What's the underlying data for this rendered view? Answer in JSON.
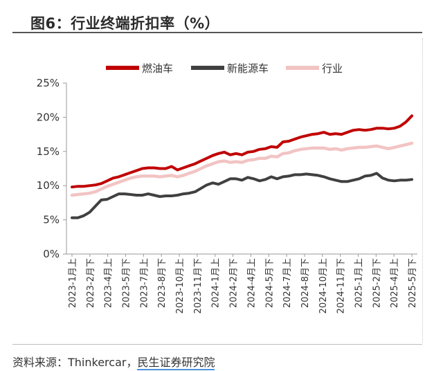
{
  "title": "图6：行业终端折扣率（%）",
  "source": {
    "prefix": "资料来源：Thinkercar，",
    "underlined": "民生证券研究院"
  },
  "chart_data": {
    "type": "line",
    "title": "图6：行业终端折扣率（%）",
    "xlabel": "",
    "ylabel": "",
    "ylim": [
      0,
      25
    ],
    "yticks": [
      "0%",
      "5%",
      "10%",
      "15%",
      "20%",
      "25%"
    ],
    "ytick_values": [
      0,
      5,
      10,
      15,
      20,
      25
    ],
    "grid": false,
    "legend_position": "top",
    "xtick_labels": [
      "2023-1月上",
      "2023-2月下",
      "2023-4月上",
      "2023-5月下",
      "2023-7月上",
      "2023-8月下",
      "2023-10月上",
      "2023-11月下",
      "2024-1月上",
      "2024-2月下",
      "2024-4月上",
      "2024-5月下",
      "2024-7月上",
      "2024-8月下",
      "2024-10月上",
      "2024-11月下",
      "2025-1月上",
      "2025-2月下",
      "2025-4月上",
      "2025-5月下"
    ],
    "x_count": 59,
    "series": [
      {
        "name": "燃油车",
        "color": "#c00000",
        "values": [
          9.8,
          9.9,
          9.9,
          10.0,
          10.1,
          10.3,
          10.7,
          11.1,
          11.3,
          11.6,
          11.9,
          12.2,
          12.5,
          12.6,
          12.6,
          12.5,
          12.5,
          12.8,
          12.3,
          12.6,
          12.9,
          13.2,
          13.6,
          14.0,
          14.4,
          14.7,
          14.9,
          14.5,
          14.7,
          14.5,
          14.9,
          15.0,
          15.3,
          15.4,
          15.7,
          15.6,
          16.4,
          16.5,
          16.8,
          17.1,
          17.3,
          17.5,
          17.6,
          17.8,
          17.5,
          17.6,
          17.5,
          17.8,
          18.1,
          18.2,
          18.1,
          18.2,
          18.4,
          18.4,
          18.3,
          18.4,
          18.7,
          19.3,
          20.2
        ],
        "series_tail": "rising to about 20.2"
      },
      {
        "name": "新能源车",
        "color": "#404040",
        "values": [
          5.3,
          5.3,
          5.6,
          6.1,
          7.0,
          7.9,
          8.0,
          8.4,
          8.8,
          8.8,
          8.7,
          8.6,
          8.6,
          8.8,
          8.6,
          8.4,
          8.5,
          8.5,
          8.6,
          8.8,
          8.9,
          9.1,
          9.6,
          10.1,
          10.4,
          10.2,
          10.6,
          11.0,
          11.0,
          10.8,
          11.2,
          11.0,
          10.7,
          10.9,
          11.3,
          11.0,
          11.3,
          11.4,
          11.6,
          11.6,
          11.7,
          11.6,
          11.5,
          11.3,
          11.0,
          10.8,
          10.6,
          10.6,
          10.8,
          11.0,
          11.4,
          11.5,
          11.8,
          11.1,
          10.8,
          10.7,
          10.8,
          10.8,
          10.9
        ]
      },
      {
        "name": "行业",
        "color": "#f2c4c4",
        "values": [
          8.6,
          8.7,
          8.8,
          8.9,
          9.1,
          9.5,
          9.9,
          10.2,
          10.5,
          10.8,
          11.1,
          11.3,
          11.4,
          11.4,
          11.4,
          11.3,
          11.4,
          11.5,
          11.3,
          11.5,
          11.8,
          12.1,
          12.5,
          12.9,
          13.2,
          13.5,
          13.6,
          13.4,
          13.5,
          13.4,
          13.7,
          13.8,
          14.0,
          14.0,
          14.3,
          14.2,
          14.7,
          14.8,
          15.1,
          15.3,
          15.4,
          15.5,
          15.5,
          15.5,
          15.3,
          15.4,
          15.2,
          15.4,
          15.5,
          15.6,
          15.6,
          15.7,
          15.8,
          15.6,
          15.4,
          15.6,
          15.8,
          16.0,
          16.2
        ]
      }
    ]
  }
}
